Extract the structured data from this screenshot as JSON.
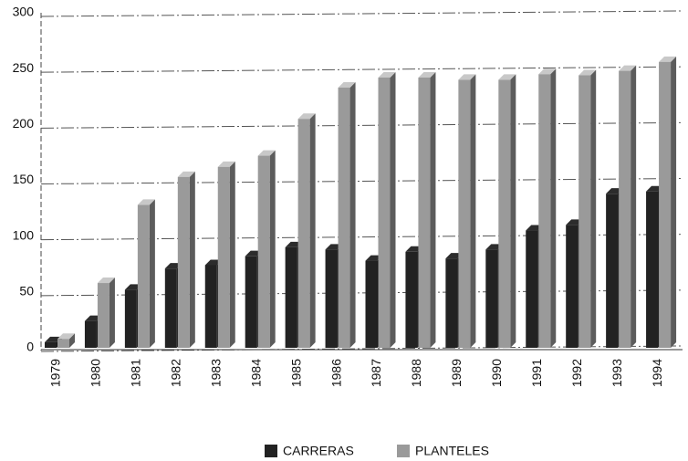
{
  "chart_data": {
    "type": "bar",
    "categories": [
      "1979",
      "1980",
      "1981",
      "1982",
      "1983",
      "1984",
      "1985",
      "1986",
      "1987",
      "1988",
      "1989",
      "1990",
      "1991",
      "1992",
      "1993",
      "1994"
    ],
    "series": [
      {
        "name": "CARRERAS",
        "color": "#222222",
        "values": [
          5,
          24,
          52,
          71,
          74,
          82,
          90,
          88,
          78,
          86,
          80,
          88,
          105,
          110,
          138,
          140
        ]
      },
      {
        "name": "PLANTELES",
        "color": "#9a9a9a",
        "values": [
          8,
          58,
          128,
          153,
          162,
          172,
          205,
          233,
          242,
          242,
          240,
          240,
          245,
          244,
          248,
          256
        ]
      }
    ],
    "ylim": [
      0,
      300
    ],
    "yticks": [
      0,
      50,
      100,
      150,
      200,
      250,
      300
    ],
    "grid": true,
    "legend": "bottom"
  }
}
